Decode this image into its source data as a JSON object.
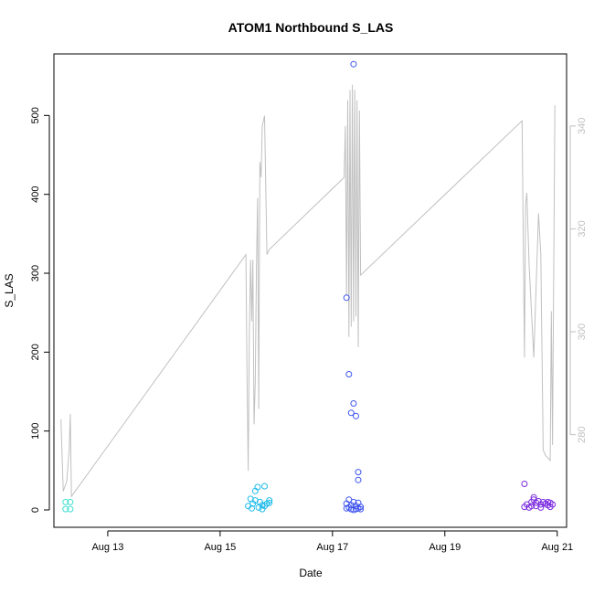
{
  "chart_data": {
    "type": "scatter",
    "title": "ATOM1 Northbound S_LAS",
    "xlabel": "Date",
    "ylabel": "S_LAS",
    "xlim": [
      "2024-08-12T01:00",
      "2024-08-21T04:00"
    ],
    "ylim": [
      -22,
      578
    ],
    "y2lim": [
      262,
      354
    ],
    "x_ticks": [
      {
        "x": "2024-08-13",
        "label": "Aug 13"
      },
      {
        "x": "2024-08-15",
        "label": "Aug 15"
      },
      {
        "x": "2024-08-17",
        "label": "Aug 17"
      },
      {
        "x": "2024-08-19",
        "label": "Aug 19"
      },
      {
        "x": "2024-08-21",
        "label": "Aug 21"
      }
    ],
    "y_ticks": [
      0,
      100,
      200,
      300,
      400,
      500
    ],
    "y2_ticks": [
      280,
      300,
      320,
      340
    ],
    "grid": false,
    "series": [
      {
        "color": "#40e0d0",
        "points": [
          [
            "2024-08-12T06:00",
            10
          ],
          [
            "2024-08-12T06:00",
            1
          ],
          [
            "2024-08-12T08:00",
            10
          ],
          [
            "2024-08-12T08:00",
            1
          ]
        ]
      },
      {
        "color": "#1ebbe8",
        "points": [
          [
            "2024-08-15T12:00",
            5
          ],
          [
            "2024-08-15T13:00",
            14
          ],
          [
            "2024-08-15T13:30",
            2
          ],
          [
            "2024-08-15T14:00",
            8
          ],
          [
            "2024-08-15T15:00",
            12
          ],
          [
            "2024-08-15T15:00",
            24
          ],
          [
            "2024-08-15T16:00",
            29
          ],
          [
            "2024-08-15T16:30",
            3
          ],
          [
            "2024-08-15T17:00",
            10
          ],
          [
            "2024-08-15T18:00",
            1
          ],
          [
            "2024-08-15T19:00",
            30
          ],
          [
            "2024-08-15T19:00",
            5
          ],
          [
            "2024-08-15T20:00",
            8
          ],
          [
            "2024-08-15T21:00",
            12
          ],
          [
            "2024-08-15T21:00",
            9
          ],
          [
            "2024-08-15T18:00",
            6
          ]
        ]
      },
      {
        "color": "#3f55ee",
        "points": [
          [
            "2024-08-17T09:00",
            565
          ],
          [
            "2024-08-17T06:00",
            269
          ],
          [
            "2024-08-17T07:00",
            172
          ],
          [
            "2024-08-17T09:00",
            135
          ],
          [
            "2024-08-17T08:00",
            123
          ],
          [
            "2024-08-17T10:00",
            119
          ],
          [
            "2024-08-17T11:00",
            48
          ],
          [
            "2024-08-17T11:00",
            38
          ],
          [
            "2024-08-17T06:00",
            8
          ],
          [
            "2024-08-17T07:00",
            13
          ],
          [
            "2024-08-17T07:00",
            3
          ],
          [
            "2024-08-17T08:00",
            1
          ],
          [
            "2024-08-17T09:00",
            10
          ],
          [
            "2024-08-17T10:00",
            5
          ],
          [
            "2024-08-17T10:00",
            1
          ],
          [
            "2024-08-17T11:00",
            2
          ],
          [
            "2024-08-17T11:00",
            9
          ],
          [
            "2024-08-17T12:00",
            4
          ],
          [
            "2024-08-17T12:00",
            1
          ],
          [
            "2024-08-17T08:00",
            6
          ],
          [
            "2024-08-17T06:00",
            2
          ],
          [
            "2024-08-17T09:00",
            0
          ]
        ]
      },
      {
        "color": "#7b2be0",
        "points": [
          [
            "2024-08-20T10:00",
            33
          ],
          [
            "2024-08-20T10:00",
            4
          ],
          [
            "2024-08-20T11:00",
            7
          ],
          [
            "2024-08-20T12:00",
            3
          ],
          [
            "2024-08-20T13:00",
            10
          ],
          [
            "2024-08-20T14:00",
            16
          ],
          [
            "2024-08-20T14:00",
            13
          ],
          [
            "2024-08-20T15:00",
            5
          ],
          [
            "2024-08-20T15:00",
            9
          ],
          [
            "2024-08-20T16:00",
            11
          ],
          [
            "2024-08-20T17:00",
            7
          ],
          [
            "2024-08-20T17:00",
            3
          ],
          [
            "2024-08-20T18:00",
            10
          ],
          [
            "2024-08-20T19:00",
            8
          ],
          [
            "2024-08-20T20:00",
            6
          ],
          [
            "2024-08-20T20:00",
            10
          ],
          [
            "2024-08-20T21:00",
            4
          ],
          [
            "2024-08-20T21:00",
            9
          ],
          [
            "2024-08-20T22:00",
            7
          ],
          [
            "2024-08-20T13:00",
            5
          ]
        ]
      }
    ],
    "secondary_line": {
      "color": "#c0c0c0",
      "axis": "right",
      "points": [
        [
          "2024-08-12T04:00",
          283
        ],
        [
          "2024-08-12T05:00",
          269
        ],
        [
          "2024-08-12T06:30",
          271
        ],
        [
          "2024-08-12T07:30",
          277
        ],
        [
          "2024-08-12T08:00",
          284
        ],
        [
          "2024-08-12T08:30",
          268
        ],
        [
          "2024-08-15T11:00",
          315
        ],
        [
          "2024-08-15T11:30",
          292
        ],
        [
          "2024-08-15T12:00",
          273
        ],
        [
          "2024-08-15T12:30",
          300
        ],
        [
          "2024-08-15T13:00",
          314
        ],
        [
          "2024-08-15T13:30",
          302
        ],
        [
          "2024-08-15T14:00",
          314
        ],
        [
          "2024-08-15T14:30",
          282
        ],
        [
          "2024-08-15T15:00",
          290
        ],
        [
          "2024-08-15T15:30",
          312
        ],
        [
          "2024-08-15T16:00",
          326
        ],
        [
          "2024-08-15T16:30",
          285
        ],
        [
          "2024-08-15T17:00",
          333
        ],
        [
          "2024-08-15T17:30",
          330
        ],
        [
          "2024-08-15T18:00",
          340
        ],
        [
          "2024-08-15T19:00",
          342
        ],
        [
          "2024-08-15T20:00",
          315
        ],
        [
          "2024-08-15T21:00",
          316
        ],
        [
          "2024-08-17T05:00",
          330
        ],
        [
          "2024-08-17T05:30",
          340
        ],
        [
          "2024-08-17T06:00",
          307
        ],
        [
          "2024-08-17T06:30",
          345
        ],
        [
          "2024-08-17T07:00",
          299
        ],
        [
          "2024-08-17T07:30",
          347
        ],
        [
          "2024-08-17T08:00",
          301
        ],
        [
          "2024-08-17T08:30",
          348
        ],
        [
          "2024-08-17T09:00",
          302
        ],
        [
          "2024-08-17T09:30",
          347
        ],
        [
          "2024-08-17T10:00",
          303
        ],
        [
          "2024-08-17T10:30",
          345
        ],
        [
          "2024-08-17T11:00",
          297
        ],
        [
          "2024-08-17T11:30",
          343
        ],
        [
          "2024-08-17T12:00",
          311
        ],
        [
          "2024-08-20T09:00",
          341
        ],
        [
          "2024-08-20T10:00",
          295
        ],
        [
          "2024-08-20T10:30",
          325
        ],
        [
          "2024-08-20T11:00",
          327
        ],
        [
          "2024-08-20T12:00",
          313
        ],
        [
          "2024-08-20T14:00",
          295
        ],
        [
          "2024-08-20T16:00",
          323
        ],
        [
          "2024-08-20T17:00",
          315
        ],
        [
          "2024-08-20T18:00",
          277
        ],
        [
          "2024-08-20T19:00",
          276
        ],
        [
          "2024-08-20T21:00",
          275
        ],
        [
          "2024-08-20T21:30",
          304
        ],
        [
          "2024-08-20T22:00",
          278
        ],
        [
          "2024-08-20T23:00",
          344
        ]
      ]
    }
  }
}
